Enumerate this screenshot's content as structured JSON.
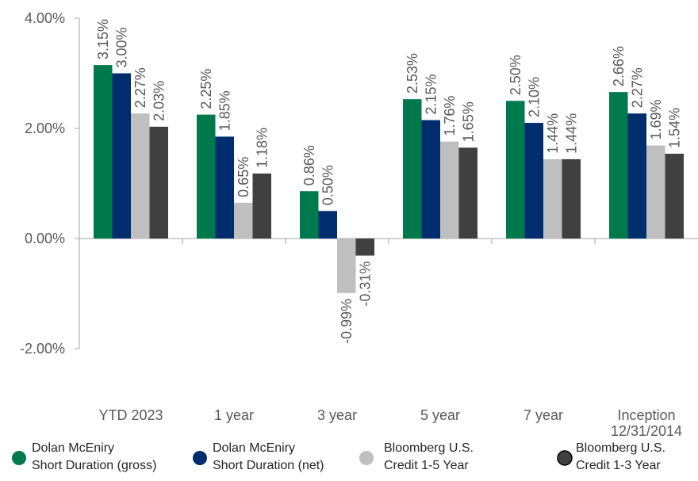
{
  "chart_data": {
    "type": "bar",
    "categories": [
      "YTD 2023",
      "1 year",
      "3 year",
      "5 year",
      "7 year",
      "Inception 12/31/2014"
    ],
    "category_lines": [
      [
        "YTD 2023"
      ],
      [
        "1 year"
      ],
      [
        "3 year"
      ],
      [
        "5 year"
      ],
      [
        "7 year"
      ],
      [
        "Inception",
        "12/31/2014"
      ]
    ],
    "series": [
      {
        "name": "Dolan McEniry Short Duration (gross)",
        "legend_lines": [
          "Dolan McEniry",
          "Short Duration (gross)"
        ],
        "color": "#007a4d",
        "values": [
          3.15,
          2.25,
          0.86,
          2.53,
          2.5,
          2.66
        ],
        "labels": [
          "3.15%",
          "2.25%",
          "0.86%",
          "2.53%",
          "2.50%",
          "2.66%"
        ]
      },
      {
        "name": "Dolan McEniry Short Duration (net)",
        "legend_lines": [
          "Dolan McEniry",
          "Short Duration (net)"
        ],
        "color": "#002d6e",
        "values": [
          3.0,
          1.85,
          0.5,
          2.15,
          2.1,
          2.27
        ],
        "labels": [
          "3.00%",
          "1.85%",
          "0.50%",
          "2.15%",
          "2.10%",
          "2.27%"
        ]
      },
      {
        "name": "Bloomberg U.S. Credit 1-5 Year",
        "legend_lines": [
          "Bloomberg U.S.",
          "Credit 1-5 Year"
        ],
        "color": "#bfbfbf",
        "values": [
          2.27,
          0.65,
          -0.99,
          1.76,
          1.44,
          1.69
        ],
        "labels": [
          "2.27%",
          "0.65%",
          "-0.99%",
          "1.76%",
          "1.44%",
          "1.69%"
        ]
      },
      {
        "name": "Bloomberg U.S. Credit 1-3 Year",
        "legend_lines": [
          "Bloomberg U.S.",
          "Credit 1-3 Year"
        ],
        "color": "#404040",
        "values": [
          2.03,
          1.18,
          -0.31,
          1.65,
          1.44,
          1.54
        ],
        "labels": [
          "2.03%",
          "1.18%",
          "-0.31%",
          "1.65%",
          "1.44%",
          "1.54%"
        ]
      }
    ],
    "y_ticks": [
      4.0,
      2.0,
      0.0,
      -2.0
    ],
    "y_tick_labels": [
      "4.00%",
      "2.00%",
      "0.00%",
      "-2.00%"
    ],
    "ylim": [
      -2.0,
      4.0
    ],
    "value_label_rotation": "vertical",
    "legend_position": "bottom",
    "grid": false
  }
}
